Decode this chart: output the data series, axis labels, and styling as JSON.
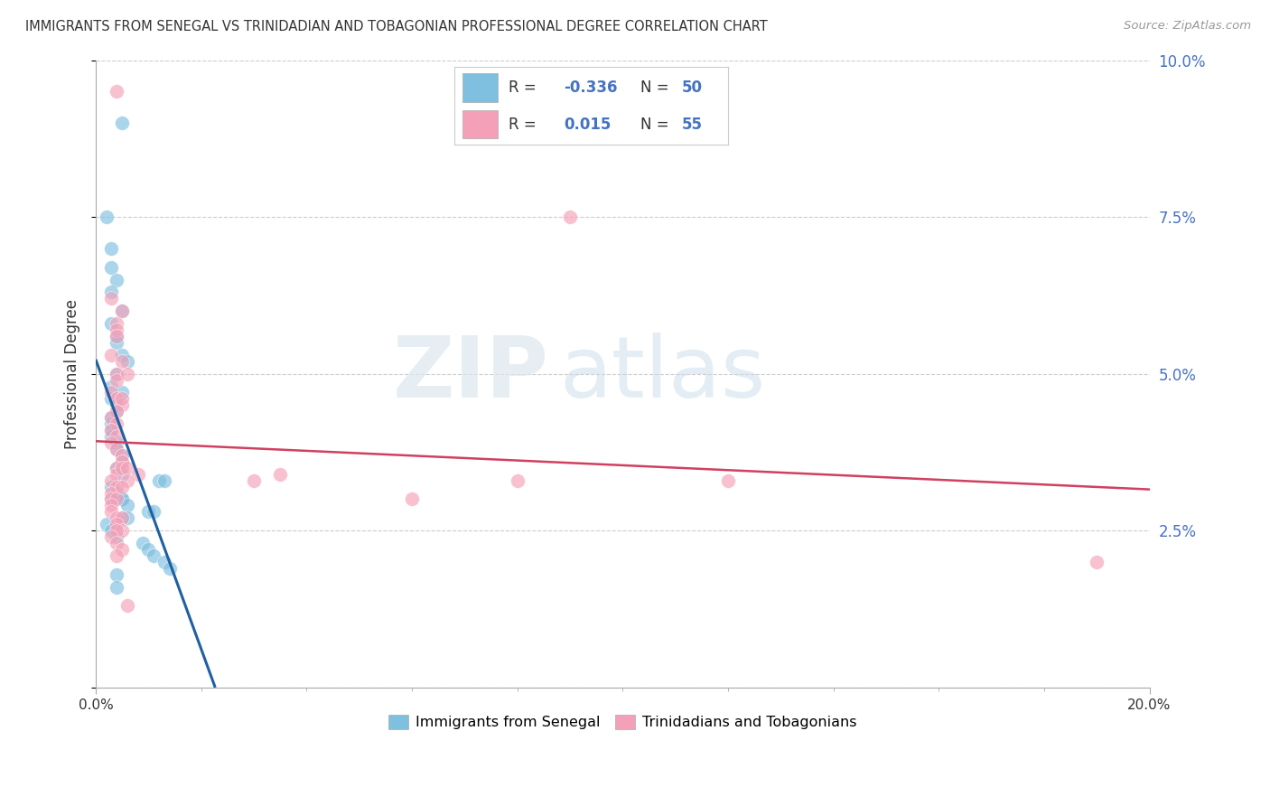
{
  "title": "IMMIGRANTS FROM SENEGAL VS TRINIDADIAN AND TOBAGONIAN PROFESSIONAL DEGREE CORRELATION CHART",
  "source": "Source: ZipAtlas.com",
  "ylabel": "Professional Degree",
  "x_min": 0.0,
  "x_max": 0.2,
  "y_min": 0.0,
  "y_max": 0.1,
  "color_blue": "#7fbfdf",
  "color_pink": "#f4a0b8",
  "color_blue_line": "#2060a0",
  "color_pink_line": "#d04060",
  "watermark_zip": "ZIP",
  "watermark_atlas": "atlas",
  "blue_x": [
    0.005,
    0.002,
    0.003,
    0.003,
    0.004,
    0.003,
    0.005,
    0.003,
    0.004,
    0.004,
    0.005,
    0.006,
    0.004,
    0.003,
    0.005,
    0.003,
    0.004,
    0.004,
    0.003,
    0.003,
    0.003,
    0.003,
    0.004,
    0.004,
    0.005,
    0.005,
    0.004,
    0.005,
    0.012,
    0.013,
    0.003,
    0.004,
    0.003,
    0.005,
    0.005,
    0.006,
    0.01,
    0.011,
    0.005,
    0.006,
    0.002,
    0.003,
    0.004,
    0.009,
    0.01,
    0.011,
    0.013,
    0.014,
    0.004,
    0.004
  ],
  "blue_y": [
    0.09,
    0.075,
    0.07,
    0.067,
    0.065,
    0.063,
    0.06,
    0.058,
    0.056,
    0.055,
    0.053,
    0.052,
    0.05,
    0.048,
    0.047,
    0.046,
    0.045,
    0.044,
    0.043,
    0.042,
    0.041,
    0.04,
    0.039,
    0.038,
    0.037,
    0.036,
    0.035,
    0.034,
    0.033,
    0.033,
    0.032,
    0.031,
    0.03,
    0.03,
    0.03,
    0.029,
    0.028,
    0.028,
    0.027,
    0.027,
    0.026,
    0.025,
    0.024,
    0.023,
    0.022,
    0.021,
    0.02,
    0.019,
    0.018,
    0.016
  ],
  "pink_x": [
    0.004,
    0.003,
    0.005,
    0.004,
    0.004,
    0.004,
    0.003,
    0.005,
    0.004,
    0.004,
    0.003,
    0.004,
    0.005,
    0.004,
    0.003,
    0.004,
    0.003,
    0.004,
    0.003,
    0.004,
    0.005,
    0.005,
    0.004,
    0.004,
    0.003,
    0.004,
    0.003,
    0.003,
    0.004,
    0.003,
    0.003,
    0.004,
    0.005,
    0.004,
    0.005,
    0.004,
    0.003,
    0.004,
    0.005,
    0.004,
    0.12,
    0.005,
    0.006,
    0.005,
    0.006,
    0.035,
    0.03,
    0.008,
    0.006,
    0.005,
    0.08,
    0.06,
    0.006,
    0.09,
    0.19
  ],
  "pink_y": [
    0.095,
    0.062,
    0.06,
    0.058,
    0.057,
    0.056,
    0.053,
    0.052,
    0.05,
    0.049,
    0.047,
    0.046,
    0.045,
    0.044,
    0.043,
    0.042,
    0.041,
    0.04,
    0.039,
    0.038,
    0.037,
    0.036,
    0.035,
    0.034,
    0.033,
    0.032,
    0.031,
    0.03,
    0.03,
    0.029,
    0.028,
    0.027,
    0.027,
    0.026,
    0.025,
    0.025,
    0.024,
    0.023,
    0.022,
    0.021,
    0.033,
    0.046,
    0.05,
    0.035,
    0.035,
    0.034,
    0.033,
    0.034,
    0.033,
    0.032,
    0.033,
    0.03,
    0.013,
    0.075,
    0.02
  ]
}
